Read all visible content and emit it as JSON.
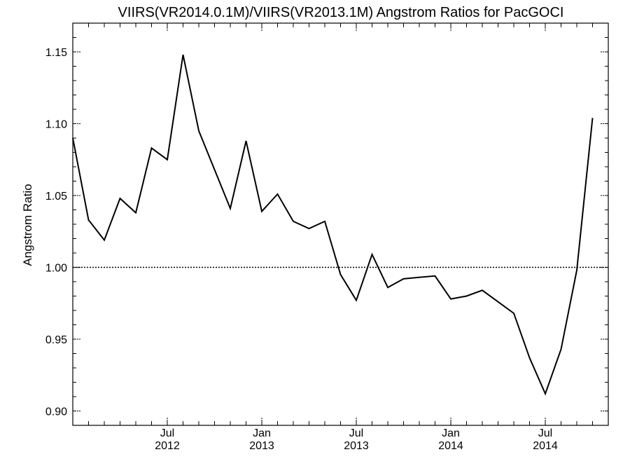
{
  "chart_data": {
    "type": "line",
    "title": "VIIRS(VR2014.0.1M)/VIIRS(VR2013.1M)  Angstrom Ratios for PacGOCI",
    "xlabel": "",
    "ylabel": "Angstrom Ratio",
    "ylim": [
      0.89,
      1.17
    ],
    "xlim": [
      "2012-01",
      "2014-11"
    ],
    "y_ticks": [
      "0.90",
      "0.95",
      "1.00",
      "1.05",
      "1.10",
      "1.15"
    ],
    "x_ticks": [
      {
        "month": "2012-07",
        "label_top": "Jul",
        "label_bottom": "2012"
      },
      {
        "month": "2013-01",
        "label_top": "Jan",
        "label_bottom": "2013"
      },
      {
        "month": "2013-07",
        "label_top": "Jul",
        "label_bottom": "2013"
      },
      {
        "month": "2014-01",
        "label_top": "Jan",
        "label_bottom": "2014"
      },
      {
        "month": "2014-07",
        "label_top": "Jul",
        "label_bottom": "2014"
      }
    ],
    "reference_line": 1.0,
    "grid": false,
    "series": [
      {
        "x": [
          "2012-01",
          "2012-02",
          "2012-03",
          "2012-04",
          "2012-05",
          "2012-06",
          "2012-07",
          "2012-08",
          "2012-09",
          "2012-10",
          "2012-11",
          "2012-12",
          "2013-01",
          "2013-02",
          "2013-03",
          "2013-04",
          "2013-05",
          "2013-06",
          "2013-07",
          "2013-08",
          "2013-09",
          "2013-10",
          "2013-11",
          "2013-12",
          "2014-01",
          "2014-02",
          "2014-03",
          "2014-04",
          "2014-05",
          "2014-06",
          "2014-07",
          "2014-08",
          "2014-09",
          "2014-10"
        ],
        "values": [
          1.09,
          1.033,
          1.019,
          1.048,
          1.038,
          1.083,
          1.075,
          1.148,
          1.095,
          1.068,
          1.041,
          1.088,
          1.039,
          1.051,
          1.032,
          1.027,
          1.032,
          0.995,
          0.977,
          1.009,
          0.986,
          0.992,
          0.993,
          0.994,
          0.978,
          0.98,
          0.984,
          0.976,
          0.968,
          0.937,
          0.912,
          0.943,
          0.998,
          1.104
        ],
        "color": "#000000"
      }
    ]
  }
}
